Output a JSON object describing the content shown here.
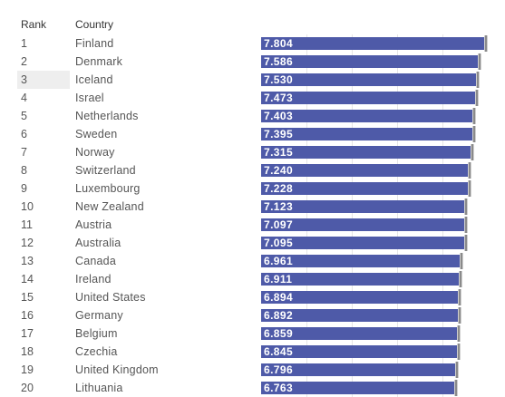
{
  "table": {
    "rank_header": "Rank",
    "country_header": "Country",
    "highlight_rank": "3"
  },
  "colors": {
    "bar": "#4e5aa8",
    "bar_label": "#ffffff",
    "row_highlight": "#eeeeee"
  },
  "chart_data": {
    "type": "bar",
    "orientation": "horizontal",
    "columns": [
      "Rank",
      "Country"
    ],
    "ranks": [
      "1",
      "2",
      "3",
      "4",
      "5",
      "6",
      "7",
      "8",
      "9",
      "10",
      "11",
      "12",
      "13",
      "14",
      "15",
      "16",
      "17",
      "18",
      "19",
      "20"
    ],
    "categories": [
      "Finland",
      "Denmark",
      "Iceland",
      "Israel",
      "Netherlands",
      "Sweden",
      "Norway",
      "Switzerland",
      "Luxembourg",
      "New Zealand",
      "Austria",
      "Australia",
      "Canada",
      "Ireland",
      "United States",
      "Germany",
      "Belgium",
      "Czechia",
      "United Kingdom",
      "Lithuania"
    ],
    "values": [
      7.804,
      7.586,
      7.53,
      7.473,
      7.403,
      7.395,
      7.315,
      7.24,
      7.228,
      7.123,
      7.097,
      7.095,
      6.961,
      6.911,
      6.894,
      6.892,
      6.859,
      6.845,
      6.796,
      6.763
    ],
    "value_labels": [
      "7.804",
      "7.586",
      "7.530",
      "7.473",
      "7.403",
      "7.395",
      "7.315",
      "7.240",
      "7.228",
      "7.123",
      "7.097",
      "7.095",
      "6.961",
      "6.911",
      "6.894",
      "6.892",
      "6.859",
      "6.845",
      "6.796",
      "6.763"
    ],
    "xlim": [
      0,
      7.9
    ],
    "grid": true,
    "legend": "none"
  }
}
